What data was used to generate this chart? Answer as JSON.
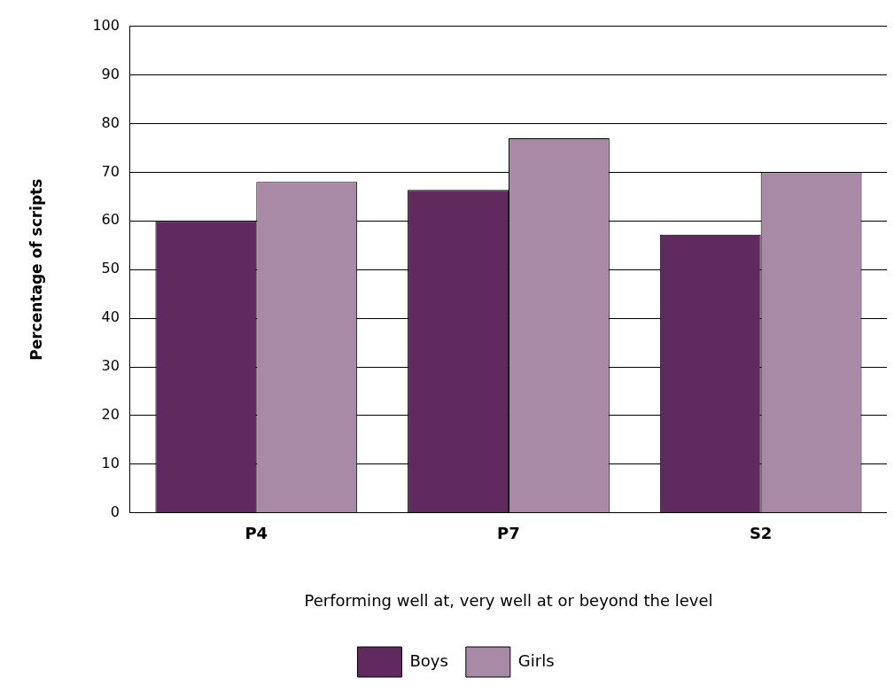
{
  "chart_data": {
    "type": "bar",
    "xlabel": "Performing well at, very well at or beyond the level",
    "ylabel": "Percentage of scripts",
    "categories": [
      "P4",
      "P7",
      "S2"
    ],
    "series": [
      {
        "name": "Boys",
        "color": "#612a5e",
        "values": [
          60,
          66.4,
          57.2
        ]
      },
      {
        "name": "Girls",
        "color": "#a889a6",
        "values": [
          68,
          77,
          70
        ]
      }
    ],
    "ylim": [
      0,
      100
    ],
    "yticks": [
      0,
      10,
      20,
      30,
      40,
      50,
      60,
      70,
      80,
      90,
      100
    ],
    "grid": "y",
    "legend": "bottom"
  }
}
